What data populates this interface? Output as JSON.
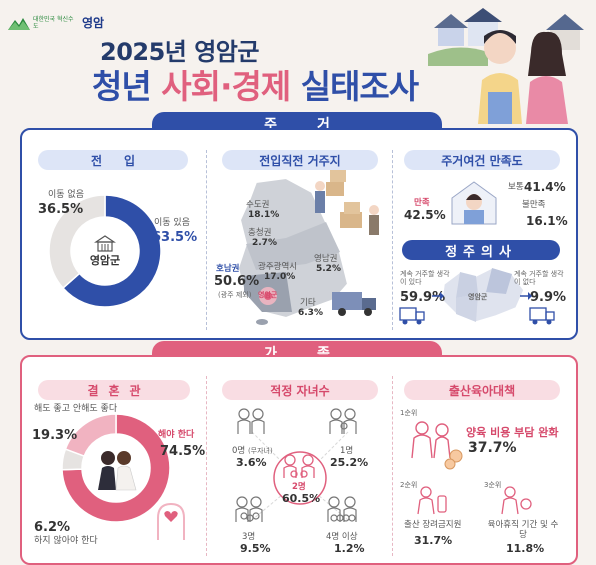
{
  "header": {
    "logo_slogan": "대한민국 혁신수도",
    "logo_city": "영암",
    "title_line1": "2025년 영암군",
    "title_line2_a": "청년 ",
    "title_line2_b": "사회·경제",
    "title_line2_c": " 실태조사"
  },
  "sections": {
    "housing": "주거",
    "family": "가족"
  },
  "colors": {
    "blue": "#2f4fa8",
    "pink": "#e0607e",
    "grey": "#e6e3e1",
    "lightpink": "#f1b3c1"
  },
  "chart_data": [
    {
      "type": "pie",
      "title": "전입",
      "center_label": "영암군",
      "slices": [
        {
          "label": "이동 있음",
          "value": 63.5,
          "display": "63.5%",
          "color": "#2f4fa8"
        },
        {
          "label": "이동 없음",
          "value": 36.5,
          "display": "36.5%",
          "color": "#e6e3e1"
        }
      ]
    },
    {
      "type": "table",
      "title": "전입직전 거주지",
      "rows": [
        {
          "label": "수도권",
          "value": 18.1,
          "display": "18.1%"
        },
        {
          "label": "충청권",
          "value": 2.7,
          "display": "2.7%"
        },
        {
          "label": "호남권",
          "note": "(광주 제외)",
          "value": 50.6,
          "display": "50.6%"
        },
        {
          "label": "광주광역시",
          "value": 17.0,
          "display": "17.0%"
        },
        {
          "label": "영남권",
          "value": 5.2,
          "display": "5.2%"
        },
        {
          "label": "기타",
          "value": 6.3,
          "display": "6.3%"
        }
      ],
      "map_marker": "영암군"
    },
    {
      "type": "table",
      "title": "주거여건 만족도",
      "rows": [
        {
          "label": "만족",
          "value": 42.5,
          "display": "42.5%"
        },
        {
          "label": "보통",
          "value": 41.4,
          "display": "41.4%"
        },
        {
          "label": "불만족",
          "value": 16.1,
          "display": "16.1%"
        }
      ]
    },
    {
      "type": "table",
      "title": "정주의사",
      "rows": [
        {
          "label": "계속 거주할 생각이 있다",
          "value": 59.9,
          "display": "59.9%"
        },
        {
          "label": "계속 거주할 생각이 없다",
          "value": 9.9,
          "display": "9.9%"
        }
      ],
      "map_marker": "영암군"
    },
    {
      "type": "pie",
      "title": "결혼관",
      "slices": [
        {
          "label": "해야 한다",
          "value": 74.5,
          "display": "74.5%",
          "color": "#e0607e"
        },
        {
          "label": "해도 좋고 안해도 좋다",
          "value": 19.3,
          "display": "19.3%",
          "color": "#f1b3c1"
        },
        {
          "label": "하지 않아야 한다",
          "value": 6.2,
          "display": "6.2%",
          "color": "#e6e3e1"
        }
      ]
    },
    {
      "type": "table",
      "title": "적정 자녀수",
      "rows": [
        {
          "label": "0명",
          "note": "(무자녀)",
          "value": 3.6,
          "display": "3.6%"
        },
        {
          "label": "1명",
          "value": 25.2,
          "display": "25.2%"
        },
        {
          "label": "2명",
          "value": 60.5,
          "display": "60.5%"
        },
        {
          "label": "3명",
          "value": 9.5,
          "display": "9.5%"
        },
        {
          "label": "4명 이상",
          "value": 1.2,
          "display": "1.2%"
        }
      ]
    },
    {
      "type": "table",
      "title": "출산육아대책",
      "rows": [
        {
          "rank": "1순위",
          "label": "양육 비용 부담 완화",
          "value": 37.7,
          "display": "37.7%"
        },
        {
          "rank": "2순위",
          "label": "출산 장려금지원",
          "value": 31.7,
          "display": "31.7%"
        },
        {
          "rank": "3순위",
          "label": "육아휴직 기간 및 수당",
          "value": 11.8,
          "display": "11.8%"
        }
      ]
    }
  ]
}
